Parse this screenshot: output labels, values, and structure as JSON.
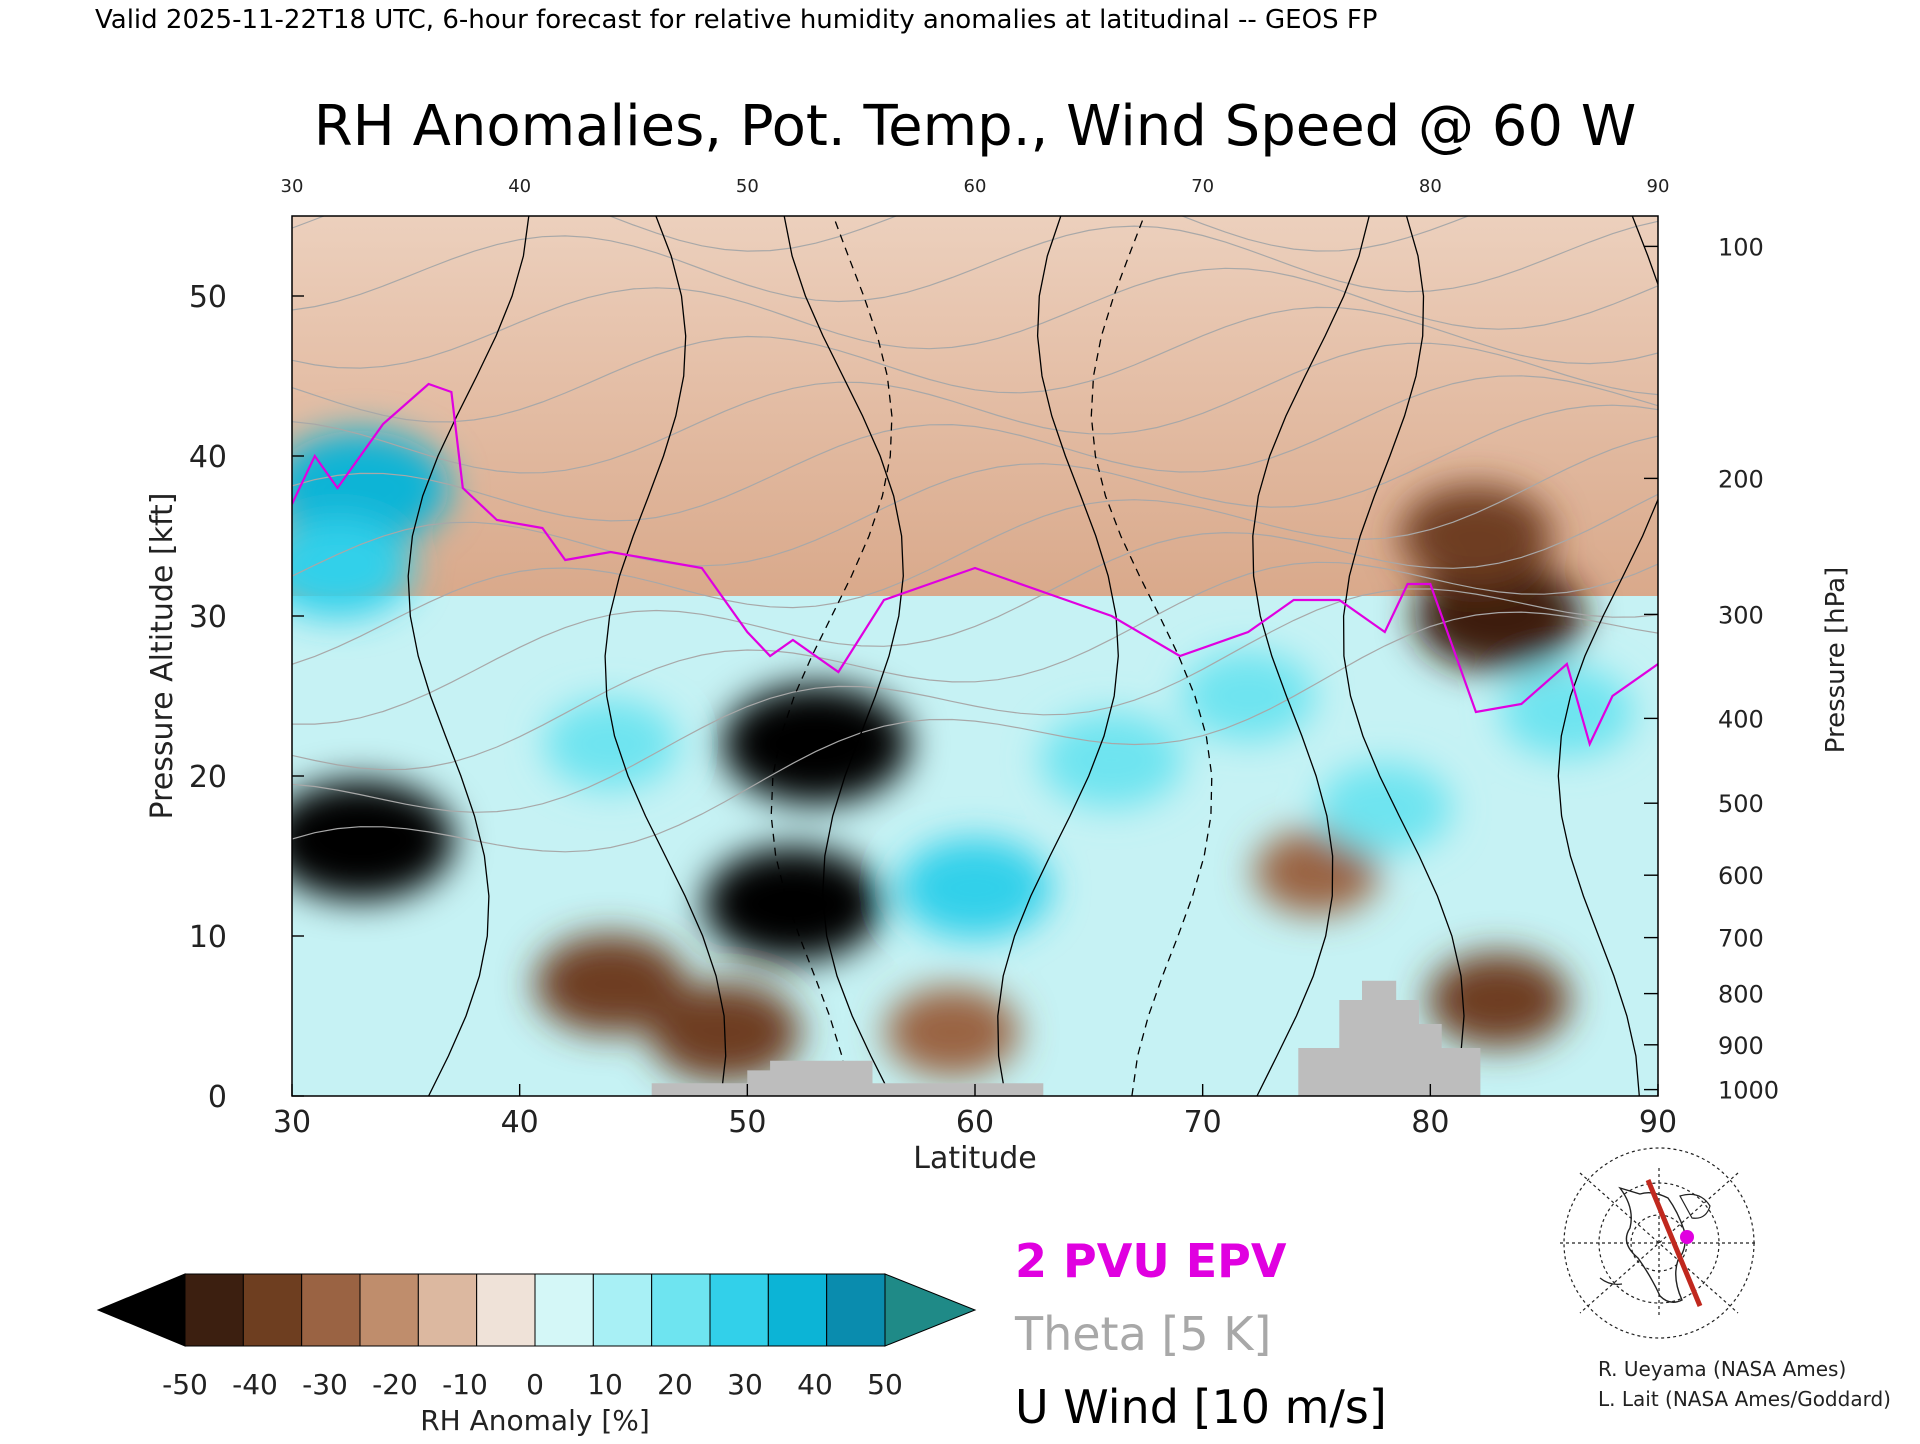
{
  "header": {
    "valid_line": "Valid 2025-11-22T18 UTC, 6-hour forecast for relative humidity anomalies at latitudinal -- GEOS FP",
    "title": "RH Anomalies, Pot. Temp., Wind Speed @ 60 W"
  },
  "credits": {
    "line1": "R. Ueyama (NASA Ames)",
    "line2": "L. Lait (NASA Ames/Goddard)"
  },
  "legend": {
    "epv_label": "2 PVU EPV",
    "theta_label": "Theta [5 K]",
    "uwind_label": "U Wind [10 m/s]",
    "colorbar_title": "RH Anomaly [%]",
    "colorbar_ticks": [
      "-50",
      "-40",
      "-30",
      "-20",
      "-10",
      "0",
      "10",
      "20",
      "30",
      "40",
      "50"
    ]
  },
  "colors": {
    "epv": "#e000e0",
    "theta": "#a8a8a8",
    "uwind": "#000000",
    "terrain": "#bdbdbd",
    "colorbar_bins": [
      "#000000",
      "#3c1f10",
      "#6e3e20",
      "#9a6343",
      "#bf8d6c",
      "#dcb8a0",
      "#efe2d8",
      "#d4f7f7",
      "#a8f0f5",
      "#6ee4f0",
      "#32d0ea",
      "#0cb4d6",
      "#0a8cae",
      "#1f8a87"
    ]
  },
  "chart_data": {
    "type": "heatmap",
    "xlabel": "Latitude",
    "ylabel_left": "Pressure Altitude [kft]",
    "ylabel_right": "Pressure [hPa]",
    "xlim": [
      30,
      90
    ],
    "ylim_kft": [
      0,
      55
    ],
    "x_ticks": [
      "30",
      "40",
      "50",
      "60",
      "70",
      "80",
      "90"
    ],
    "x_ticks_top": [
      "30",
      "40",
      "50",
      "60",
      "70",
      "80",
      "90"
    ],
    "y_ticks_left": [
      "0",
      "10",
      "20",
      "30",
      "40",
      "50"
    ],
    "y_ticks_right": [
      {
        "label": "100",
        "kft": 53.1
      },
      {
        "label": "200",
        "kft": 38.6
      },
      {
        "label": "300",
        "kft": 30.1
      },
      {
        "label": "400",
        "kft": 23.6
      },
      {
        "label": "500",
        "kft": 18.3
      },
      {
        "label": "600",
        "kft": 13.8
      },
      {
        "label": "700",
        "kft": 9.9
      },
      {
        "label": "800",
        "kft": 6.4
      },
      {
        "label": "900",
        "kft": 3.2
      },
      {
        "label": "1000",
        "kft": 0.4
      }
    ],
    "colorbar_range": [
      -50,
      50
    ],
    "colorbar_step": 10,
    "colorbar_extend": "both",
    "anomaly_features": [
      {
        "lat": 33,
        "kft": 16,
        "value": -60
      },
      {
        "lat": 53,
        "kft": 22,
        "value": -60
      },
      {
        "lat": 52,
        "kft": 12,
        "value": -55
      },
      {
        "lat": 44,
        "kft": 7,
        "value": -40
      },
      {
        "lat": 49,
        "kft": 4,
        "value": -40
      },
      {
        "lat": 83,
        "kft": 30,
        "value": -50
      },
      {
        "lat": 82,
        "kft": 35,
        "value": -40
      },
      {
        "lat": 75,
        "kft": 14,
        "value": -25
      },
      {
        "lat": 83,
        "kft": 6,
        "value": -35
      },
      {
        "lat": 59,
        "kft": 4,
        "value": -30
      },
      {
        "lat": 33,
        "kft": 38,
        "value": 55
      },
      {
        "lat": 32,
        "kft": 33,
        "value": 40
      },
      {
        "lat": 44,
        "kft": 22,
        "value": 30
      },
      {
        "lat": 60,
        "kft": 13,
        "value": 40
      },
      {
        "lat": 66,
        "kft": 21,
        "value": 35
      },
      {
        "lat": 72,
        "kft": 25,
        "value": 30
      },
      {
        "lat": 78,
        "kft": 18,
        "value": 30
      },
      {
        "lat": 86,
        "kft": 24,
        "value": 30
      }
    ],
    "epv_2pvu_kft": [
      {
        "lat": 30,
        "kft": 37
      },
      {
        "lat": 31,
        "kft": 40
      },
      {
        "lat": 32,
        "kft": 38
      },
      {
        "lat": 34,
        "kft": 42
      },
      {
        "lat": 36,
        "kft": 44.5
      },
      {
        "lat": 37,
        "kft": 44
      },
      {
        "lat": 37.5,
        "kft": 38
      },
      {
        "lat": 39,
        "kft": 36
      },
      {
        "lat": 41,
        "kft": 35.5
      },
      {
        "lat": 42,
        "kft": 33.5
      },
      {
        "lat": 44,
        "kft": 34
      },
      {
        "lat": 46,
        "kft": 33.5
      },
      {
        "lat": 48,
        "kft": 33
      },
      {
        "lat": 50,
        "kft": 29
      },
      {
        "lat": 51,
        "kft": 27.5
      },
      {
        "lat": 52,
        "kft": 28.5
      },
      {
        "lat": 54,
        "kft": 26.5
      },
      {
        "lat": 56,
        "kft": 31
      },
      {
        "lat": 58,
        "kft": 32
      },
      {
        "lat": 60,
        "kft": 33
      },
      {
        "lat": 63,
        "kft": 31.5
      },
      {
        "lat": 66,
        "kft": 30
      },
      {
        "lat": 69,
        "kft": 27.5
      },
      {
        "lat": 72,
        "kft": 29
      },
      {
        "lat": 74,
        "kft": 31
      },
      {
        "lat": 76,
        "kft": 31
      },
      {
        "lat": 78,
        "kft": 29
      },
      {
        "lat": 79,
        "kft": 32
      },
      {
        "lat": 80,
        "kft": 32
      },
      {
        "lat": 82,
        "kft": 24
      },
      {
        "lat": 84,
        "kft": 24.5
      },
      {
        "lat": 86,
        "kft": 27
      },
      {
        "lat": 87,
        "kft": 22
      },
      {
        "lat": 88,
        "kft": 25
      },
      {
        "lat": 90,
        "kft": 27
      }
    ],
    "theta_levels_K": [
      310,
      320,
      330,
      340,
      350,
      360,
      370,
      380,
      390,
      400,
      410,
      420
    ],
    "uwind_contour_labels": [
      "10",
      "10",
      "-10",
      "0",
      "0",
      "-10",
      "10",
      "10",
      "10"
    ],
    "terrain_kft": [
      {
        "lat": 30,
        "kft": 0
      },
      {
        "lat": 45.8,
        "kft": 0
      },
      {
        "lat": 45.8,
        "kft": 0.8
      },
      {
        "lat": 50,
        "kft": 0.8
      },
      {
        "lat": 50,
        "kft": 1.6
      },
      {
        "lat": 51,
        "kft": 1.6
      },
      {
        "lat": 51,
        "kft": 2.2
      },
      {
        "lat": 55.5,
        "kft": 2.2
      },
      {
        "lat": 55.5,
        "kft": 0.8
      },
      {
        "lat": 63,
        "kft": 0.8
      },
      {
        "lat": 63,
        "kft": 0
      },
      {
        "lat": 74.2,
        "kft": 0
      },
      {
        "lat": 74.2,
        "kft": 3
      },
      {
        "lat": 76,
        "kft": 3
      },
      {
        "lat": 76,
        "kft": 6
      },
      {
        "lat": 77,
        "kft": 6
      },
      {
        "lat": 77,
        "kft": 7.2
      },
      {
        "lat": 78.5,
        "kft": 7.2
      },
      {
        "lat": 78.5,
        "kft": 6
      },
      {
        "lat": 79.5,
        "kft": 6
      },
      {
        "lat": 79.5,
        "kft": 4.5
      },
      {
        "lat": 80.5,
        "kft": 4.5
      },
      {
        "lat": 80.5,
        "kft": 3
      },
      {
        "lat": 82.2,
        "kft": 3
      },
      {
        "lat": 82.2,
        "kft": 0
      },
      {
        "lat": 90,
        "kft": 0
      }
    ]
  }
}
